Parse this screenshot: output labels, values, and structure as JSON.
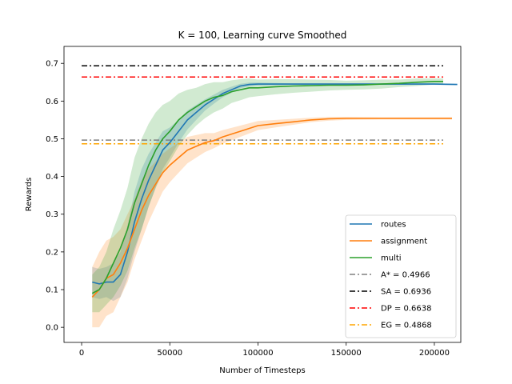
{
  "chart_data": {
    "type": "line",
    "title": "K = 100, Learning curve Smoothed",
    "xlabel": "Number of Timesteps",
    "ylabel": "Rewards",
    "xlim": [
      -10000,
      215000
    ],
    "ylim": [
      -0.04,
      0.745
    ],
    "xticks": [
      0,
      50000,
      100000,
      150000,
      200000
    ],
    "yticks": [
      0.0,
      0.1,
      0.2,
      0.3,
      0.4,
      0.5,
      0.6,
      0.7
    ],
    "xtick_labels": [
      "0",
      "50000",
      "100000",
      "150000",
      "200000"
    ],
    "ytick_labels": [
      "0.0",
      "0.1",
      "0.2",
      "0.3",
      "0.4",
      "0.5",
      "0.6",
      "0.7"
    ],
    "legend_position": "lower-right",
    "series": [
      {
        "name": "routes",
        "color": "#1f77b4",
        "x": [
          6000,
          10000,
          14000,
          18000,
          22000,
          26000,
          30000,
          34000,
          38000,
          42000,
          46000,
          50000,
          55000,
          60000,
          65000,
          70000,
          75000,
          80000,
          85000,
          90000,
          95000,
          100000,
          110000,
          120000,
          140000,
          160000,
          180000,
          200000,
          213000
        ],
        "y": [
          0.12,
          0.115,
          0.12,
          0.12,
          0.14,
          0.2,
          0.28,
          0.34,
          0.39,
          0.43,
          0.47,
          0.49,
          0.52,
          0.55,
          0.57,
          0.59,
          0.605,
          0.62,
          0.63,
          0.64,
          0.644,
          0.645,
          0.645,
          0.645,
          0.645,
          0.645,
          0.645,
          0.645,
          0.644
        ],
        "band": [
          0.04,
          0.04,
          0.04,
          0.05,
          0.06,
          0.07,
          0.08,
          0.08,
          0.07,
          0.06,
          0.05,
          0.04,
          0.03,
          0.025,
          0.02,
          0.015,
          0.012,
          0.01,
          0.008,
          0.006,
          0.005,
          0.004,
          0.003,
          0.002,
          0.002,
          0.002,
          0.002,
          0.002,
          0.002
        ]
      },
      {
        "name": "assignment",
        "color": "#ff7f0e",
        "x": [
          6000,
          10000,
          14000,
          18000,
          22000,
          26000,
          30000,
          34000,
          38000,
          42000,
          46000,
          50000,
          55000,
          60000,
          65000,
          70000,
          75000,
          80000,
          90000,
          100000,
          110000,
          120000,
          130000,
          140000,
          150000,
          170000,
          190000,
          210000
        ],
        "y": [
          0.08,
          0.1,
          0.13,
          0.14,
          0.17,
          0.21,
          0.26,
          0.31,
          0.35,
          0.38,
          0.41,
          0.43,
          0.45,
          0.47,
          0.48,
          0.49,
          0.495,
          0.505,
          0.52,
          0.535,
          0.54,
          0.545,
          0.55,
          0.553,
          0.554,
          0.554,
          0.554,
          0.554
        ],
        "band": [
          0.08,
          0.1,
          0.1,
          0.1,
          0.09,
          0.09,
          0.08,
          0.08,
          0.07,
          0.06,
          0.05,
          0.045,
          0.04,
          0.035,
          0.03,
          0.025,
          0.02,
          0.018,
          0.015,
          0.012,
          0.01,
          0.008,
          0.006,
          0.005,
          0.004,
          0.003,
          0.003,
          0.003
        ]
      },
      {
        "name": "multi",
        "color": "#2ca02c",
        "x": [
          6000,
          10000,
          14000,
          18000,
          22000,
          26000,
          30000,
          34000,
          38000,
          42000,
          46000,
          50000,
          55000,
          60000,
          65000,
          70000,
          75000,
          80000,
          85000,
          90000,
          95000,
          100000,
          110000,
          120000,
          130000,
          140000,
          150000,
          160000,
          170000,
          180000,
          190000,
          200000,
          205000
        ],
        "y": [
          0.09,
          0.1,
          0.13,
          0.17,
          0.21,
          0.26,
          0.33,
          0.38,
          0.43,
          0.47,
          0.5,
          0.52,
          0.55,
          0.57,
          0.585,
          0.6,
          0.61,
          0.615,
          0.625,
          0.63,
          0.635,
          0.635,
          0.638,
          0.64,
          0.641,
          0.642,
          0.642,
          0.643,
          0.645,
          0.647,
          0.65,
          0.652,
          0.652
        ],
        "band": [
          0.05,
          0.06,
          0.07,
          0.09,
          0.1,
          0.11,
          0.12,
          0.12,
          0.11,
          0.1,
          0.09,
          0.08,
          0.07,
          0.06,
          0.05,
          0.045,
          0.04,
          0.035,
          0.03,
          0.028,
          0.025,
          0.022,
          0.02,
          0.018,
          0.016,
          0.014,
          0.012,
          0.012,
          0.012,
          0.01,
          0.01,
          0.008,
          0.008
        ]
      }
    ],
    "reference_lines": [
      {
        "name": "A* = 0.4966",
        "value": 0.4966,
        "color": "#808080",
        "x_range": [
          0,
          205000
        ]
      },
      {
        "name": "SA = 0.6936",
        "value": 0.6936,
        "color": "#000000",
        "x_range": [
          0,
          205000
        ]
      },
      {
        "name": "DP = 0.6638",
        "value": 0.6638,
        "color": "#ff0000",
        "x_range": [
          0,
          205000
        ]
      },
      {
        "name": "EG = 0.4868",
        "value": 0.4868,
        "color": "#ffa500",
        "x_range": [
          0,
          205000
        ]
      }
    ],
    "legend_entries": [
      "routes",
      "assignment",
      "multi",
      "A* = 0.4966",
      "SA = 0.6936",
      "DP = 0.6638",
      "EG = 0.4868"
    ]
  }
}
